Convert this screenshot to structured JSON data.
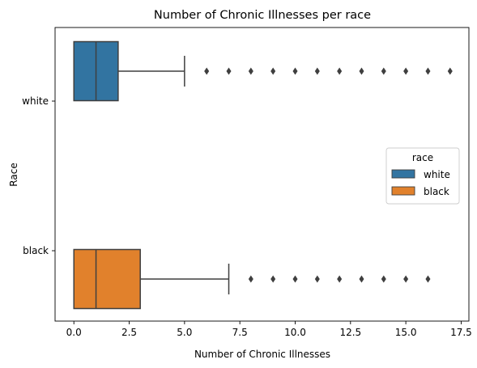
{
  "chart_data": {
    "type": "box",
    "orientation": "horizontal",
    "title": "Number of Chronic Illnesses per race",
    "xlabel": "Number of Chronic Illnesses",
    "ylabel": "Race",
    "xlim": [
      -0.85,
      17.85
    ],
    "xticks": [
      0.0,
      2.5,
      5.0,
      7.5,
      10.0,
      12.5,
      15.0,
      17.5
    ],
    "xtick_labels": [
      "0.0",
      "2.5",
      "5.0",
      "7.5",
      "10.0",
      "12.5",
      "15.0",
      "17.5"
    ],
    "categories": [
      "white",
      "black"
    ],
    "legend": {
      "title": "race",
      "placement": "center-right",
      "entries": [
        "white",
        "black"
      ]
    },
    "series": [
      {
        "name": "white",
        "color": "#3274a1",
        "q1": 0,
        "median": 1,
        "q3": 2,
        "whisker_low": 0,
        "whisker_high": 5,
        "outliers": [
          6,
          7,
          8,
          9,
          10,
          11,
          12,
          13,
          14,
          15,
          16,
          17
        ]
      },
      {
        "name": "black",
        "color": "#e1812c",
        "q1": 0,
        "median": 1,
        "q3": 3,
        "whisker_low": 0,
        "whisker_high": 7,
        "outliers": [
          8,
          9,
          10,
          11,
          12,
          13,
          14,
          15,
          16
        ]
      }
    ]
  }
}
